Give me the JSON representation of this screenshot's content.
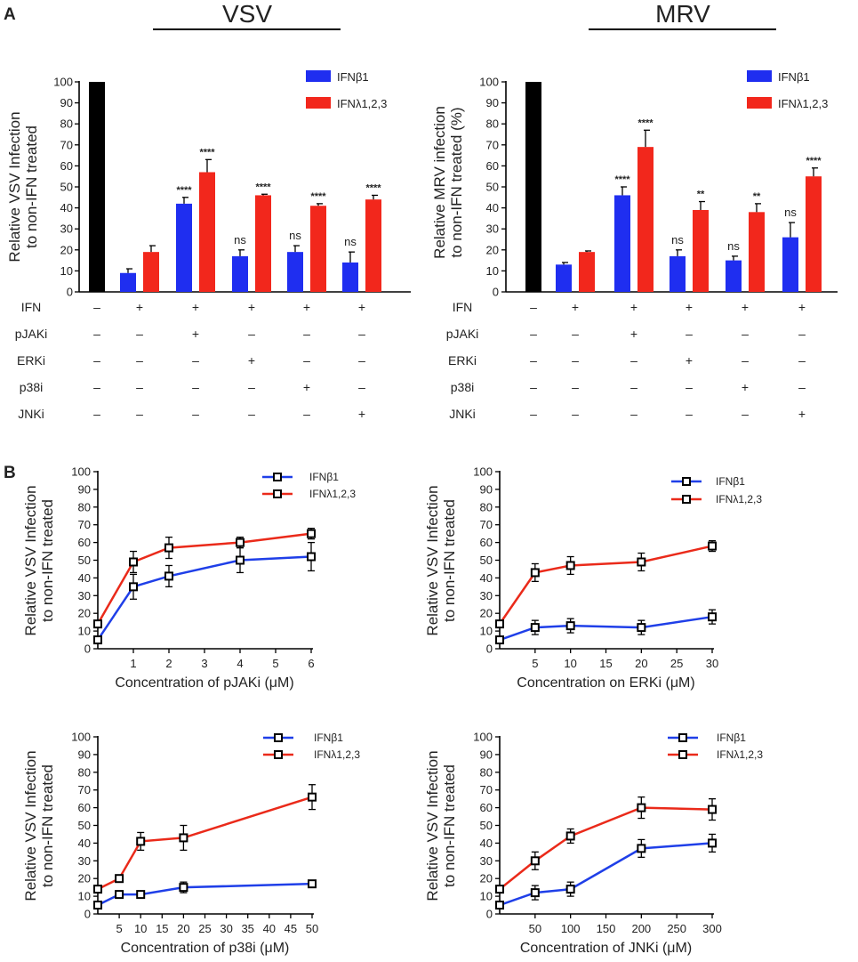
{
  "panel_labels": [
    "A",
    "B"
  ],
  "colors": {
    "control": "#000000",
    "ifnb": "#1f2ef0",
    "ifnl": "#f2271c",
    "line_blue": "#1f3fe8",
    "line_red": "#ea2a1a"
  },
  "chart_data": [
    {
      "id": "vsv-bars",
      "type": "bar",
      "title": "VSV",
      "ylabel": [
        "Relative VSV Infection",
        "to non-IFN treated"
      ],
      "ylim": [
        0,
        100
      ],
      "yticks": [
        0,
        10,
        20,
        30,
        40,
        50,
        60,
        70,
        80,
        90,
        100
      ],
      "legend": [
        "IFNβ1",
        "IFNλ1,2,3"
      ],
      "control": 100,
      "series": [
        {
          "name": "IFNβ1",
          "values": [
            9,
            42,
            17,
            19,
            14
          ],
          "errors": [
            2,
            3,
            3,
            3,
            5
          ],
          "sig": [
            "",
            "****",
            "ns",
            "ns",
            "ns"
          ]
        },
        {
          "name": "IFNλ1,2,3",
          "values": [
            19,
            57,
            46,
            41,
            44
          ],
          "errors": [
            3,
            6,
            0.5,
            1,
            2
          ],
          "sig": [
            "",
            "****",
            "****",
            "****",
            "****"
          ]
        }
      ],
      "treatment_rows": [
        {
          "label": "IFN",
          "values": [
            "–",
            "+",
            "+",
            "+",
            "+",
            "+"
          ]
        },
        {
          "label": "pJAKi",
          "values": [
            "–",
            "–",
            "+",
            "–",
            "–",
            "–"
          ]
        },
        {
          "label": "ERKi",
          "values": [
            "–",
            "–",
            "–",
            "+",
            "–",
            "–"
          ]
        },
        {
          "label": "p38i",
          "values": [
            "–",
            "–",
            "–",
            "–",
            "+",
            "–"
          ]
        },
        {
          "label": "JNKi",
          "values": [
            "–",
            "–",
            "–",
            "–",
            "–",
            "+"
          ]
        }
      ]
    },
    {
      "id": "mrv-bars",
      "type": "bar",
      "title": "MRV",
      "ylabel": [
        "Relative MRV  infection",
        "to non-IFN treated (%)"
      ],
      "ylim": [
        0,
        100
      ],
      "yticks": [
        0,
        10,
        20,
        30,
        40,
        50,
        60,
        70,
        80,
        90,
        100
      ],
      "legend": [
        "IFNβ1",
        "IFNλ1,2,3"
      ],
      "control": 100,
      "series": [
        {
          "name": "IFNβ1",
          "values": [
            13,
            46,
            17,
            15,
            26
          ],
          "errors": [
            1,
            4,
            3,
            2,
            7
          ],
          "sig": [
            "",
            "****",
            "ns",
            "ns",
            "ns"
          ]
        },
        {
          "name": "IFNλ1,2,3",
          "values": [
            19,
            69,
            39,
            38,
            55
          ],
          "errors": [
            0.5,
            8,
            4,
            4,
            4
          ],
          "sig": [
            "",
            "****",
            "**",
            "**",
            "****"
          ]
        }
      ],
      "treatment_rows": [
        {
          "label": "IFN",
          "values": [
            "–",
            "+",
            "+",
            "+",
            "+",
            "+"
          ]
        },
        {
          "label": "pJAKi",
          "values": [
            "–",
            "–",
            "+",
            "–",
            "–",
            "–"
          ]
        },
        {
          "label": "ERKi",
          "values": [
            "–",
            "–",
            "–",
            "+",
            "–",
            "–"
          ]
        },
        {
          "label": "p38i",
          "values": [
            "–",
            "–",
            "–",
            "–",
            "+",
            "–"
          ]
        },
        {
          "label": "JNKi",
          "values": [
            "–",
            "–",
            "–",
            "–",
            "–",
            "+"
          ]
        }
      ]
    },
    {
      "id": "pjak-line",
      "type": "line",
      "xlabel": "Concentration of pJAKi (μM)",
      "ylabel": [
        "Relative VSV Infection",
        "to non-IFN treated"
      ],
      "xlim": [
        0,
        6
      ],
      "xticks": [
        1,
        2,
        3,
        4,
        5,
        6
      ],
      "ylim": [
        0,
        100
      ],
      "yticks": [
        0,
        10,
        20,
        30,
        40,
        50,
        60,
        70,
        80,
        90,
        100
      ],
      "series": [
        {
          "name": "IFNβ1",
          "x": [
            0,
            1,
            2,
            4,
            6
          ],
          "y": [
            5,
            35,
            41,
            50,
            52
          ],
          "err": [
            2,
            7,
            6,
            7,
            8
          ]
        },
        {
          "name": "IFNλ1,2,3",
          "x": [
            0,
            1,
            2,
            4,
            6
          ],
          "y": [
            14,
            49,
            57,
            60,
            65
          ],
          "err": [
            2,
            6,
            6,
            3,
            3
          ]
        }
      ]
    },
    {
      "id": "erk-line",
      "type": "line",
      "xlabel": "Concentration on ERKi (μM)",
      "ylabel": [
        "Relative VSV Infection",
        "to non-IFN treated"
      ],
      "xlim": [
        0,
        30
      ],
      "xticks": [
        5,
        10,
        15,
        20,
        25,
        30
      ],
      "ylim": [
        0,
        100
      ],
      "yticks": [
        0,
        10,
        20,
        30,
        40,
        50,
        60,
        70,
        80,
        90,
        100
      ],
      "series": [
        {
          "name": "IFNβ1",
          "x": [
            0,
            5,
            10,
            20,
            30
          ],
          "y": [
            5,
            12,
            13,
            12,
            18
          ],
          "err": [
            2,
            4,
            4,
            4,
            4
          ]
        },
        {
          "name": "IFNλ1,2,3",
          "x": [
            0,
            5,
            10,
            20,
            30
          ],
          "y": [
            14,
            43,
            47,
            49,
            58
          ],
          "err": [
            2,
            5,
            5,
            5,
            3
          ]
        }
      ]
    },
    {
      "id": "p38-line",
      "type": "line",
      "xlabel": "Concentration of p38i (μM)",
      "ylabel": [
        "Relative VSV Infection",
        "to non-IFN treated"
      ],
      "xlim": [
        0,
        50
      ],
      "xticks": [
        5,
        10,
        15,
        20,
        25,
        30,
        35,
        40,
        45,
        50
      ],
      "ylim": [
        0,
        100
      ],
      "yticks": [
        0,
        10,
        20,
        30,
        40,
        50,
        60,
        70,
        80,
        90,
        100
      ],
      "series": [
        {
          "name": "IFNβ1",
          "x": [
            0,
            5,
            10,
            20,
            50
          ],
          "y": [
            5,
            11,
            11,
            15,
            17
          ],
          "err": [
            2,
            1,
            1,
            3,
            2
          ]
        },
        {
          "name": "IFNλ1,2,3",
          "x": [
            0,
            5,
            10,
            20,
            50
          ],
          "y": [
            14,
            20,
            41,
            43,
            66
          ],
          "err": [
            2,
            1,
            5,
            7,
            7
          ]
        }
      ]
    },
    {
      "id": "jnk-line",
      "type": "line",
      "xlabel": "Concentration of JNKi (μM)",
      "ylabel": [
        "Relative VSV Infection",
        "to non-IFN treated"
      ],
      "xlim": [
        0,
        300
      ],
      "xticks": [
        50,
        100,
        150,
        200,
        250,
        300
      ],
      "ylim": [
        0,
        100
      ],
      "yticks": [
        0,
        10,
        20,
        30,
        40,
        50,
        60,
        70,
        80,
        90,
        100
      ],
      "series": [
        {
          "name": "IFNβ1",
          "x": [
            0,
            50,
            100,
            200,
            300
          ],
          "y": [
            5,
            12,
            14,
            37,
            40
          ],
          "err": [
            2,
            4,
            4,
            5,
            5
          ]
        },
        {
          "name": "IFNλ1,2,3",
          "x": [
            0,
            50,
            100,
            200,
            300
          ],
          "y": [
            14,
            30,
            44,
            60,
            59
          ],
          "err": [
            2,
            5,
            4,
            6,
            6
          ]
        }
      ]
    }
  ]
}
